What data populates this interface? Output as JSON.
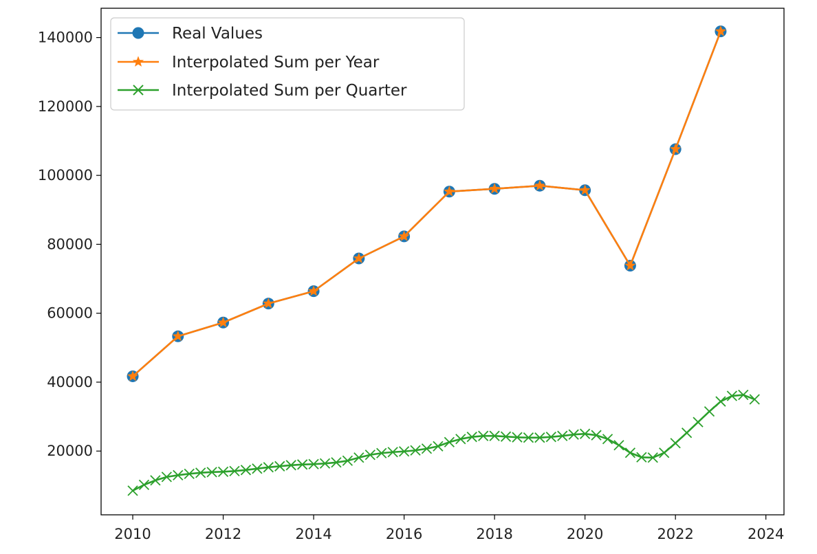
{
  "chart_data": {
    "type": "line",
    "title": "",
    "xlabel": "",
    "ylabel": "",
    "xlim": [
      2009.3,
      2024.4
    ],
    "ylim": [
      1500,
      148500
    ],
    "x_ticks": [
      2010,
      2012,
      2014,
      2016,
      2018,
      2020,
      2022,
      2024
    ],
    "y_ticks": [
      20000,
      40000,
      60000,
      80000,
      100000,
      120000,
      140000
    ],
    "x_tick_labels": [
      "2010",
      "2012",
      "2014",
      "2016",
      "2018",
      "2020",
      "2022",
      "2024"
    ],
    "y_tick_labels": [
      "20000",
      "40000",
      "60000",
      "80000",
      "100000",
      "120000",
      "140000"
    ],
    "grid": false,
    "legend_position": "top-left",
    "legend": [
      "Real Values",
      "Interpolated Sum per Year",
      "Interpolated Sum per Quarter"
    ],
    "series": [
      {
        "name": "Real Values",
        "color": "#1f77b4",
        "marker": "circle",
        "x": [
          2010,
          2011,
          2012,
          2013,
          2014,
          2015,
          2016,
          2017,
          2018,
          2019,
          2020,
          2021,
          2022,
          2023
        ],
        "y": [
          41700,
          53300,
          57300,
          62800,
          66400,
          75900,
          82300,
          95300,
          96100,
          97000,
          95700,
          73800,
          107600,
          141800
        ]
      },
      {
        "name": "Interpolated Sum per Year",
        "color": "#ff7f0e",
        "marker": "star",
        "x": [
          2010,
          2011,
          2012,
          2013,
          2014,
          2015,
          2016,
          2017,
          2018,
          2019,
          2020,
          2021,
          2022,
          2023
        ],
        "y": [
          41700,
          53300,
          57300,
          62800,
          66400,
          75900,
          82300,
          95300,
          96100,
          97000,
          95700,
          73800,
          107600,
          141800
        ]
      },
      {
        "name": "Interpolated Sum per Quarter",
        "color": "#2ca02c",
        "marker": "x",
        "x": [
          2010.0,
          2010.25,
          2010.5,
          2010.75,
          2011.0,
          2011.25,
          2011.5,
          2011.75,
          2012.0,
          2012.25,
          2012.5,
          2012.75,
          2013.0,
          2013.25,
          2013.5,
          2013.75,
          2014.0,
          2014.25,
          2014.5,
          2014.75,
          2015.0,
          2015.25,
          2015.5,
          2015.75,
          2016.0,
          2016.25,
          2016.5,
          2016.75,
          2017.0,
          2017.25,
          2017.5,
          2017.75,
          2018.0,
          2018.25,
          2018.5,
          2018.75,
          2019.0,
          2019.25,
          2019.5,
          2019.75,
          2020.0,
          2020.25,
          2020.5,
          2020.75,
          2021.0,
          2021.25,
          2021.5,
          2021.75,
          2022.0,
          2022.25,
          2022.5,
          2022.75,
          2023.0,
          2023.25,
          2023.5,
          2023.75
        ],
        "y": [
          8500,
          10200,
          11500,
          12500,
          13000,
          13400,
          13700,
          13900,
          14000,
          14200,
          14500,
          14900,
          15300,
          15600,
          15900,
          16100,
          16200,
          16400,
          16700,
          17200,
          18100,
          18900,
          19400,
          19700,
          19900,
          20200,
          20700,
          21400,
          22600,
          23500,
          24100,
          24400,
          24400,
          24200,
          24000,
          23900,
          23900,
          24100,
          24400,
          24800,
          25000,
          24600,
          23500,
          21700,
          19500,
          18200,
          18100,
          19500,
          22300,
          25300,
          28400,
          31500,
          34400,
          36000,
          36300,
          35000
        ]
      }
    ]
  }
}
